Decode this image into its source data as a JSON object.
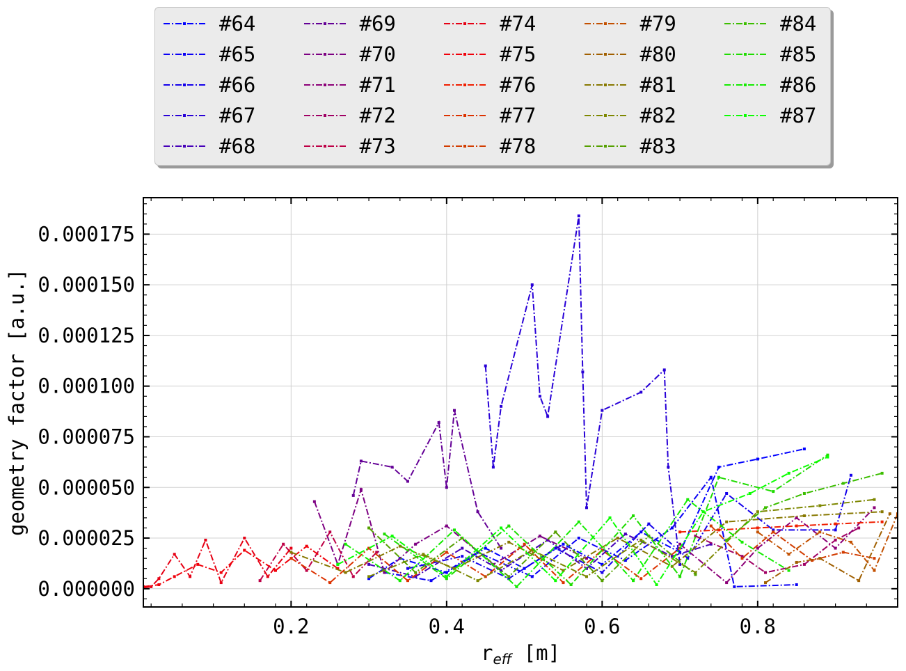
{
  "chart_data": {
    "type": "line",
    "xlabel": "r_eff [m]",
    "xlabel_main": "r",
    "xlabel_sub": "eff",
    "xlabel_unit": " [m]",
    "ylabel": "geometry factor [a.u.]",
    "xlim": [
      0.01,
      0.98
    ],
    "ylim": [
      -9e-06,
      0.000193
    ],
    "x_ticks": [
      0.2,
      0.4,
      0.6,
      0.8
    ],
    "x_tick_labels": [
      "0.2",
      "0.4",
      "0.6",
      "0.8"
    ],
    "y_ticks": [
      0,
      2.5e-05,
      5e-05,
      7.5e-05,
      0.0001,
      0.000125,
      0.00015,
      0.000175
    ],
    "y_tick_labels": [
      "0.000000",
      "0.000025",
      "0.000050",
      "0.000075",
      "0.000100",
      "0.000125",
      "0.000150",
      "0.000175"
    ],
    "grid": true,
    "legend_position": "top-center",
    "legend_columns": 5,
    "series": [
      {
        "name": "#64",
        "color": "#0000ff",
        "x": [
          0.3,
          0.34,
          0.4,
          0.45,
          0.5,
          0.55,
          0.6,
          0.65,
          0.7,
          0.75,
          0.8,
          0.86
        ],
        "y": [
          5e-06,
          1.5e-05,
          8e-06,
          2e-05,
          1e-05,
          2.2e-05,
          1.2e-05,
          2.8e-05,
          1.8e-05,
          6e-05,
          6.4e-05,
          6.9e-05
        ]
      },
      {
        "name": "#65",
        "color": "#0a00f5",
        "x": [
          0.32,
          0.38,
          0.44,
          0.51,
          0.57,
          0.63,
          0.69,
          0.74,
          0.77,
          0.85
        ],
        "y": [
          8e-06,
          4e-06,
          1.8e-05,
          6e-06,
          2.5e-05,
          1.4e-05,
          3e-05,
          5.5e-05,
          1e-06,
          2e-06
        ]
      },
      {
        "name": "#66",
        "color": "#1400eb",
        "x": [
          0.35,
          0.42,
          0.48,
          0.54,
          0.6,
          0.66,
          0.71,
          0.76,
          0.82,
          0.9,
          0.92
        ],
        "y": [
          1e-05,
          1.6e-05,
          5e-06,
          2e-05,
          8e-06,
          3.2e-05,
          1.5e-05,
          4.7e-05,
          2.9e-05,
          2.9e-05,
          5.6e-05
        ]
      },
      {
        "name": "#67",
        "color": "#2800d7",
        "x": [
          0.45,
          0.46,
          0.47,
          0.51,
          0.52,
          0.53,
          0.57,
          0.575,
          0.58,
          0.6,
          0.65,
          0.68,
          0.685,
          0.7
        ],
        "y": [
          0.00011,
          6e-05,
          9e-05,
          0.00015,
          9.5e-05,
          8.5e-05,
          0.000184,
          0.000107,
          4e-05,
          8.8e-05,
          9.7e-05,
          0.000108,
          6e-05,
          1.2e-05
        ]
      },
      {
        "name": "#68",
        "color": "#4600b9",
        "x": [
          0.3,
          0.36,
          0.42,
          0.47,
          0.53,
          0.58,
          0.63,
          0.69,
          0.74
        ],
        "y": [
          1.2e-05,
          6e-06,
          2e-05,
          9e-06,
          2.4e-05,
          1e-05,
          2.7e-05,
          1.6e-05,
          2.2e-05
        ]
      },
      {
        "name": "#69",
        "color": "#640096",
        "x": [
          0.28,
          0.29,
          0.33,
          0.35,
          0.39,
          0.4,
          0.41,
          0.44,
          0.47
        ],
        "y": [
          4.6e-05,
          6.3e-05,
          6e-05,
          5.3e-05,
          8.2e-05,
          5e-05,
          8.8e-05,
          3.8e-05,
          2e-05
        ]
      },
      {
        "name": "#70",
        "color": "#7d0082",
        "x": [
          0.23,
          0.26,
          0.29,
          0.32,
          0.36,
          0.4,
          0.46,
          0.52,
          0.58
        ],
        "y": [
          4.3e-05,
          1.2e-05,
          4.9e-05,
          8e-06,
          2.2e-05,
          3.1e-05,
          1.2e-05,
          2.6e-05,
          1.5e-05
        ]
      },
      {
        "name": "#71",
        "color": "#8c0078",
        "x": [
          0.7,
          0.76,
          0.8,
          0.85,
          0.9,
          0.95
        ],
        "y": [
          2.2e-05,
          3e-06,
          2e-05,
          3.5e-05,
          2e-05,
          4e-05
        ]
      },
      {
        "name": "#72",
        "color": "#a00064",
        "x": [
          0.72,
          0.78,
          0.81,
          0.86,
          0.9,
          0.93
        ],
        "y": [
          2.6e-05,
          1.6e-05,
          8e-06,
          1.2e-05,
          2.4e-05,
          3e-05
        ]
      },
      {
        "name": "#73",
        "color": "#be0046",
        "x": [
          0.16,
          0.19,
          0.22,
          0.25,
          0.28,
          0.31
        ],
        "y": [
          4e-06,
          2.2e-05,
          9e-06,
          2.8e-05,
          6e-06,
          1.8e-05
        ]
      },
      {
        "name": "#74",
        "color": "#e60014",
        "x": [
          0.01,
          0.02,
          0.03,
          0.05,
          0.07,
          0.09,
          0.11,
          0.14,
          0.17,
          0.2
        ],
        "y": [
          5e-07,
          1e-06,
          5e-06,
          1.7e-05,
          6e-06,
          2.4e-05,
          3e-06,
          2.5e-05,
          6e-06,
          2e-05
        ]
      },
      {
        "name": "#75",
        "color": "#f0000a",
        "x": [
          0.01,
          0.03,
          0.05,
          0.08,
          0.11,
          0.14,
          0.18,
          0.22,
          0.26
        ],
        "y": [
          1e-06,
          2e-06,
          6e-06,
          1.2e-05,
          8e-06,
          1.9e-05,
          9e-06,
          2.1e-05,
          1e-05
        ]
      },
      {
        "name": "#76",
        "color": "#f01e00",
        "x": [
          0.7,
          0.75,
          0.8,
          0.85,
          0.9,
          0.96
        ],
        "y": [
          2.8e-05,
          2.9e-05,
          3e-05,
          3.1e-05,
          3.2e-05,
          3.3e-05
        ]
      },
      {
        "name": "#77",
        "color": "#dc3200",
        "x": [
          0.2,
          0.25,
          0.3,
          0.35,
          0.4,
          0.45,
          0.5,
          0.55,
          0.6,
          0.65,
          0.7
        ],
        "y": [
          1.5e-05,
          3e-06,
          2e-05,
          4e-06,
          1.8e-05,
          6e-06,
          2.2e-05,
          3e-06,
          1.9e-05,
          5e-06,
          2e-05
        ]
      },
      {
        "name": "#78",
        "color": "#d23c00",
        "x": [
          0.74,
          0.78,
          0.82,
          0.87,
          0.91,
          0.95
        ],
        "y": [
          3.1e-05,
          1.5e-05,
          2.8e-05,
          1.4e-05,
          1.8e-05,
          1.5e-05
        ]
      },
      {
        "name": "#79",
        "color": "#c35000",
        "x": [
          0.8,
          0.84,
          0.88,
          0.92,
          0.95,
          0.98
        ],
        "y": [
          2.8e-05,
          1.7e-05,
          2.8e-05,
          2.3e-05,
          9e-06,
          3.7e-05
        ]
      },
      {
        "name": "#80",
        "color": "#a05f00",
        "x": [
          0.81,
          0.85,
          0.88,
          0.93,
          0.97
        ],
        "y": [
          3e-06,
          1.3e-05,
          1.5e-05,
          4e-06,
          3.7e-05
        ]
      },
      {
        "name": "#81",
        "color": "#877800",
        "x": [
          0.2,
          0.27,
          0.34,
          0.41,
          0.48,
          0.55,
          0.62,
          0.69,
          0.76,
          0.86,
          0.96
        ],
        "y": [
          1.8e-05,
          8e-06,
          2.1e-05,
          1e-05,
          2.3e-05,
          9e-06,
          2.5e-05,
          1.1e-05,
          3.3e-05,
          3.6e-05,
          3.8e-05
        ]
      },
      {
        "name": "#82",
        "color": "#7d8700",
        "x": [
          0.3,
          0.37,
          0.44,
          0.51,
          0.58,
          0.65,
          0.72,
          0.8,
          0.88,
          0.95
        ],
        "y": [
          6e-06,
          1.7e-05,
          4e-06,
          1.9e-05,
          6e-06,
          2.4e-05,
          8e-06,
          3.8e-05,
          4.1e-05,
          4.4e-05
        ]
      },
      {
        "name": "#83",
        "color": "#55a000",
        "x": [
          0.3,
          0.36,
          0.42,
          0.48,
          0.54,
          0.6,
          0.66,
          0.72
        ],
        "y": [
          3e-05,
          8e-06,
          2.5e-05,
          6e-06,
          2.8e-05,
          4e-06,
          2.6e-05,
          7e-06
        ]
      },
      {
        "name": "#84",
        "color": "#3cbe00",
        "x": [
          0.76,
          0.81,
          0.86,
          0.91,
          0.96
        ],
        "y": [
          2.4e-05,
          4e-05,
          4.7e-05,
          5.2e-05,
          5.7e-05
        ]
      },
      {
        "name": "#85",
        "color": "#1edc00",
        "x": [
          0.32,
          0.4,
          0.48,
          0.56,
          0.64,
          0.7,
          0.75,
          0.82,
          0.89
        ],
        "y": [
          2.7e-05,
          5e-06,
          3.1e-05,
          2e-06,
          3.6e-05,
          6e-06,
          5.5e-05,
          4.8e-05,
          6.6e-05
        ]
      },
      {
        "name": "#86",
        "color": "#14eb00",
        "x": [
          0.27,
          0.34,
          0.41,
          0.49,
          0.57,
          0.64,
          0.71,
          0.78,
          0.84
        ],
        "y": [
          2.2e-05,
          4e-06,
          2.9e-05,
          1e-06,
          3.3e-05,
          4e-06,
          4.4e-05,
          2.3e-05,
          9e-06
        ]
      },
      {
        "name": "#87",
        "color": "#0aff00",
        "x": [
          0.26,
          0.33,
          0.4,
          0.47,
          0.54,
          0.61,
          0.67,
          0.73,
          0.79,
          0.84,
          0.89
        ],
        "y": [
          1.2e-05,
          2.6e-05,
          6e-06,
          3e-05,
          4e-06,
          3.5e-05,
          2e-06,
          3.8e-05,
          4.7e-05,
          5.7e-05,
          6.5e-05
        ]
      }
    ]
  }
}
